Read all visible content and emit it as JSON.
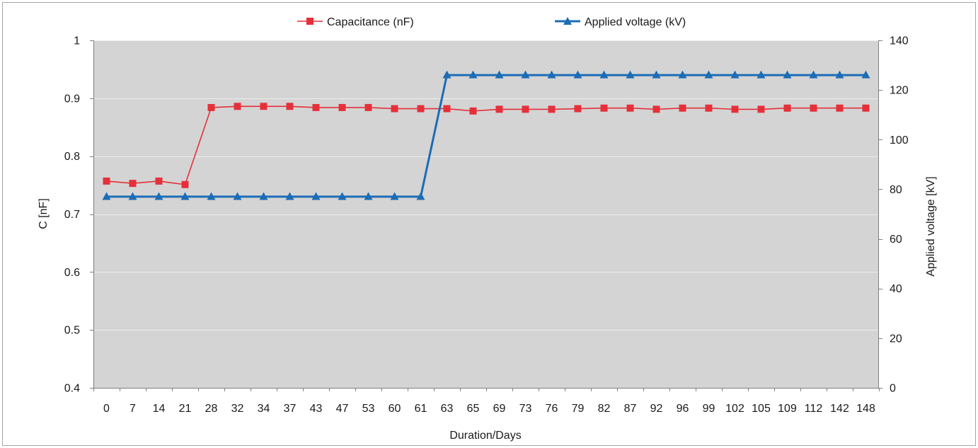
{
  "chart_data": {
    "type": "line",
    "categories": [
      "0",
      "7",
      "14",
      "21",
      "28",
      "32",
      "34",
      "37",
      "43",
      "47",
      "53",
      "60",
      "61",
      "63",
      "65",
      "69",
      "73",
      "76",
      "79",
      "82",
      "87",
      "92",
      "96",
      "99",
      "102",
      "105",
      "109",
      "112",
      "142",
      "148"
    ],
    "series": [
      {
        "name": "Capacitance (nF)",
        "axis": "left",
        "color": "#e5303a",
        "marker": "square",
        "values": [
          0.757,
          0.753,
          0.757,
          0.751,
          0.884,
          0.886,
          0.886,
          0.886,
          0.884,
          0.884,
          0.884,
          0.882,
          0.882,
          0.882,
          0.878,
          0.881,
          0.881,
          0.881,
          0.882,
          0.883,
          0.883,
          0.881,
          0.883,
          0.883,
          0.881,
          0.881,
          0.883,
          0.883,
          0.883,
          0.883
        ]
      },
      {
        "name": "Applied voltage (kV)",
        "axis": "right",
        "color": "#1c6cb6",
        "marker": "triangle",
        "values": [
          77,
          77,
          77,
          77,
          77,
          77,
          77,
          77,
          77,
          77,
          77,
          77,
          77,
          126,
          126,
          126,
          126,
          126,
          126,
          126,
          126,
          126,
          126,
          126,
          126,
          126,
          126,
          126,
          126,
          126
        ]
      }
    ],
    "xlabel": "Duration/Days",
    "ylabel": "C [nF]",
    "y2label": "Applied voltage [kV]",
    "ylim": [
      0.4,
      1
    ],
    "y2lim": [
      0,
      140
    ],
    "yticks": [
      0.4,
      0.5,
      0.6,
      0.7,
      0.8,
      0.9,
      1
    ],
    "y2ticks": [
      0,
      20,
      40,
      60,
      80,
      100,
      120,
      140
    ],
    "grid": true,
    "legend": "top",
    "plot_background": "#d4d4d4"
  }
}
